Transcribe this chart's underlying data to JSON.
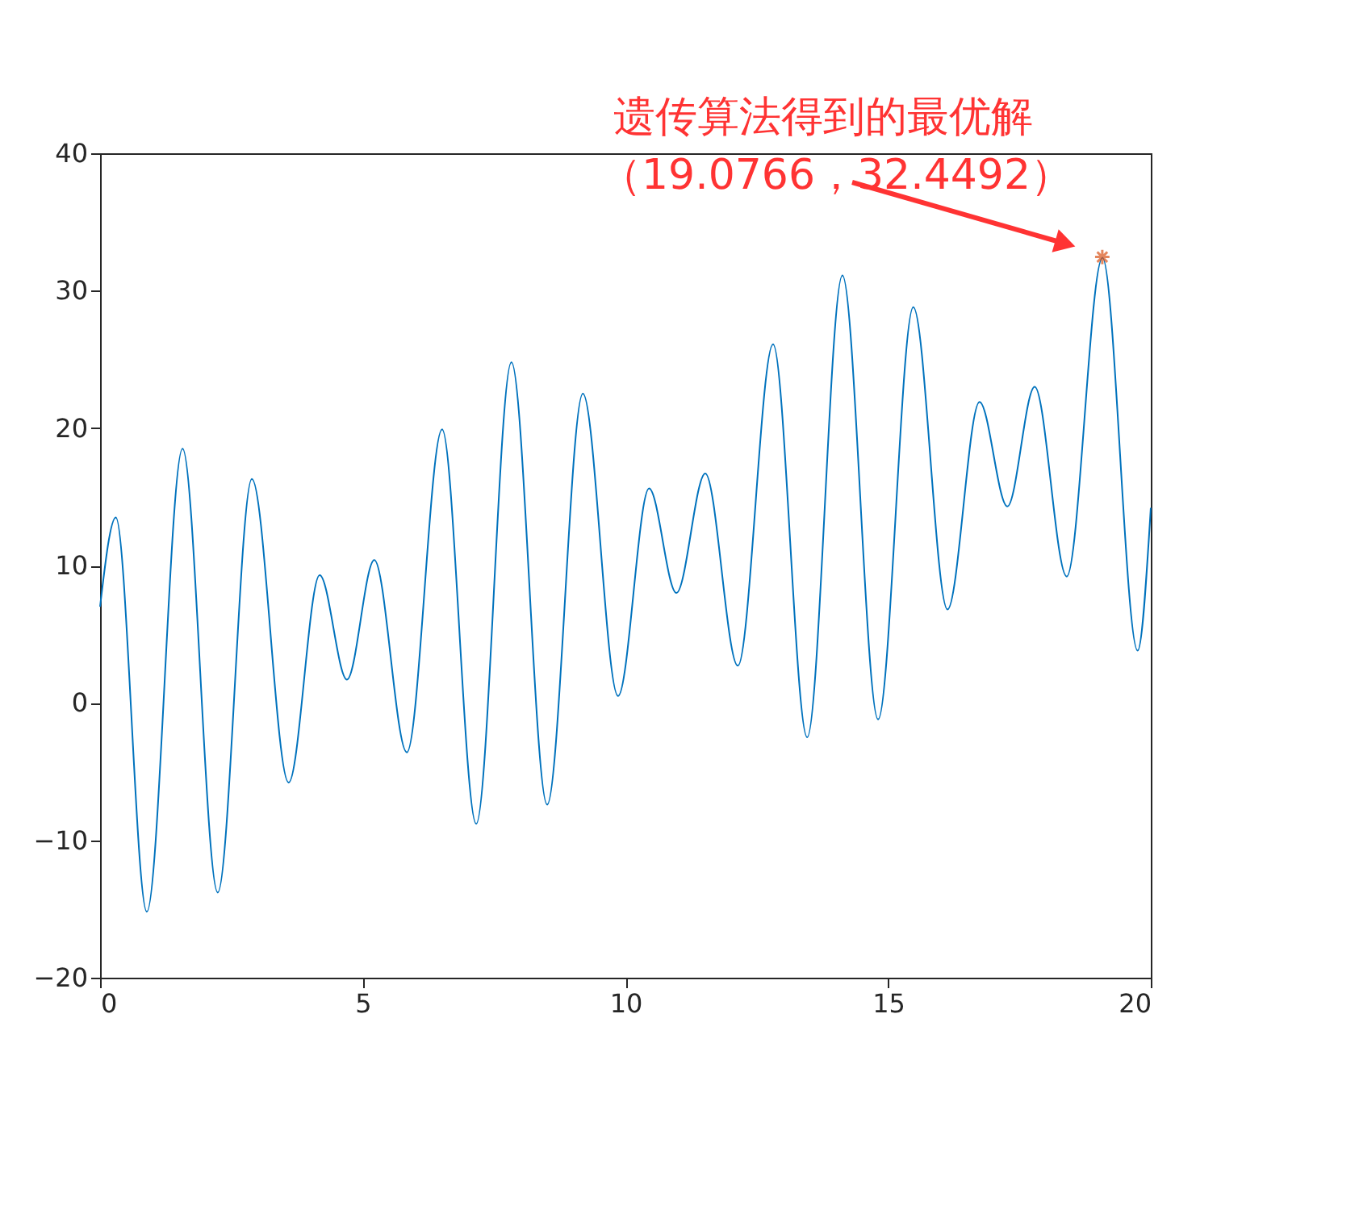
{
  "chart_data": {
    "type": "line",
    "xlim": [
      0,
      20
    ],
    "xticks": [
      0,
      5,
      10,
      15,
      20
    ],
    "ylim": [
      -20,
      40
    ],
    "yticks": [
      -20,
      -10,
      0,
      10,
      20,
      30,
      40
    ],
    "grid": false,
    "line_style": "solid",
    "series": [
      {
        "color": "#0072bd",
        "marker": "none",
        "x": [
          0,
          0.3,
          0.89,
          1.57,
          2.24,
          2.89,
          3.59,
          4.18,
          4.7,
          5.22,
          5.84,
          6.51,
          7.16,
          7.83,
          8.51,
          9.19,
          9.86,
          10.45,
          10.97,
          11.52,
          12.14,
          12.81,
          13.46,
          14.13,
          14.81,
          15.48,
          16.13,
          16.74,
          17.27,
          17.79,
          18.4,
          19.08,
          19.75,
          20
        ],
        "values": [
          7,
          13.5,
          -15.2,
          18.5,
          -13.8,
          16.3,
          -5.8,
          9.3,
          1.7,
          10.4,
          -3.6,
          19.9,
          -8.8,
          24.8,
          -7.4,
          22.5,
          0.5,
          15.6,
          8.0,
          16.7,
          2.7,
          26.1,
          -2.5,
          31.1,
          -1.2,
          28.8,
          6.8,
          21.9,
          14.3,
          23.0,
          9.2,
          32.4,
          3.8,
          14.2
        ]
      },
      {
        "type": "scatter",
        "color": "#d95319",
        "marker": "cross",
        "x": [
          19.0766
        ],
        "values": [
          32.4492
        ]
      }
    ],
    "annotations": [
      "遗传算法得到的最优解",
      "（19.0766，32.4492）"
    ]
  }
}
